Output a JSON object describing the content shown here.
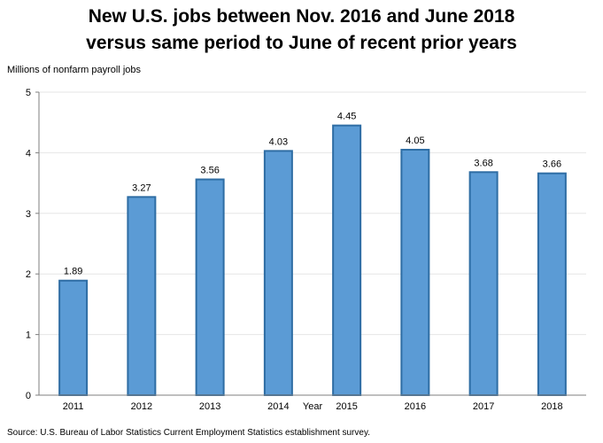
{
  "chart_data": {
    "type": "bar",
    "title_line1": "New U.S. jobs between Nov. 2016 and June 2018",
    "title_line2": "versus same period to June of recent prior years",
    "ylabel": "Millions of nonfarm payroll jobs",
    "xlabel": "Year",
    "categories": [
      "2011",
      "2012",
      "2013",
      "2014",
      "2015",
      "2016",
      "2017",
      "2018"
    ],
    "values": [
      1.89,
      3.27,
      3.56,
      4.03,
      4.45,
      4.05,
      3.68,
      3.66
    ],
    "data_labels": [
      "1.89",
      "3.27",
      "3.56",
      "4.03",
      "4.45",
      "4.05",
      "3.68",
      "3.66"
    ],
    "ylim": [
      0,
      5
    ],
    "yticks": [
      "0",
      "1",
      "2",
      "3",
      "4",
      "5"
    ],
    "grid": true,
    "legend": "none",
    "bar_color": "#5b9bd5",
    "bar_border_color": "#2e6da4",
    "source": "Source: U.S. Bureau of Labor Statistics Current Employment Statistics establishment survey."
  }
}
